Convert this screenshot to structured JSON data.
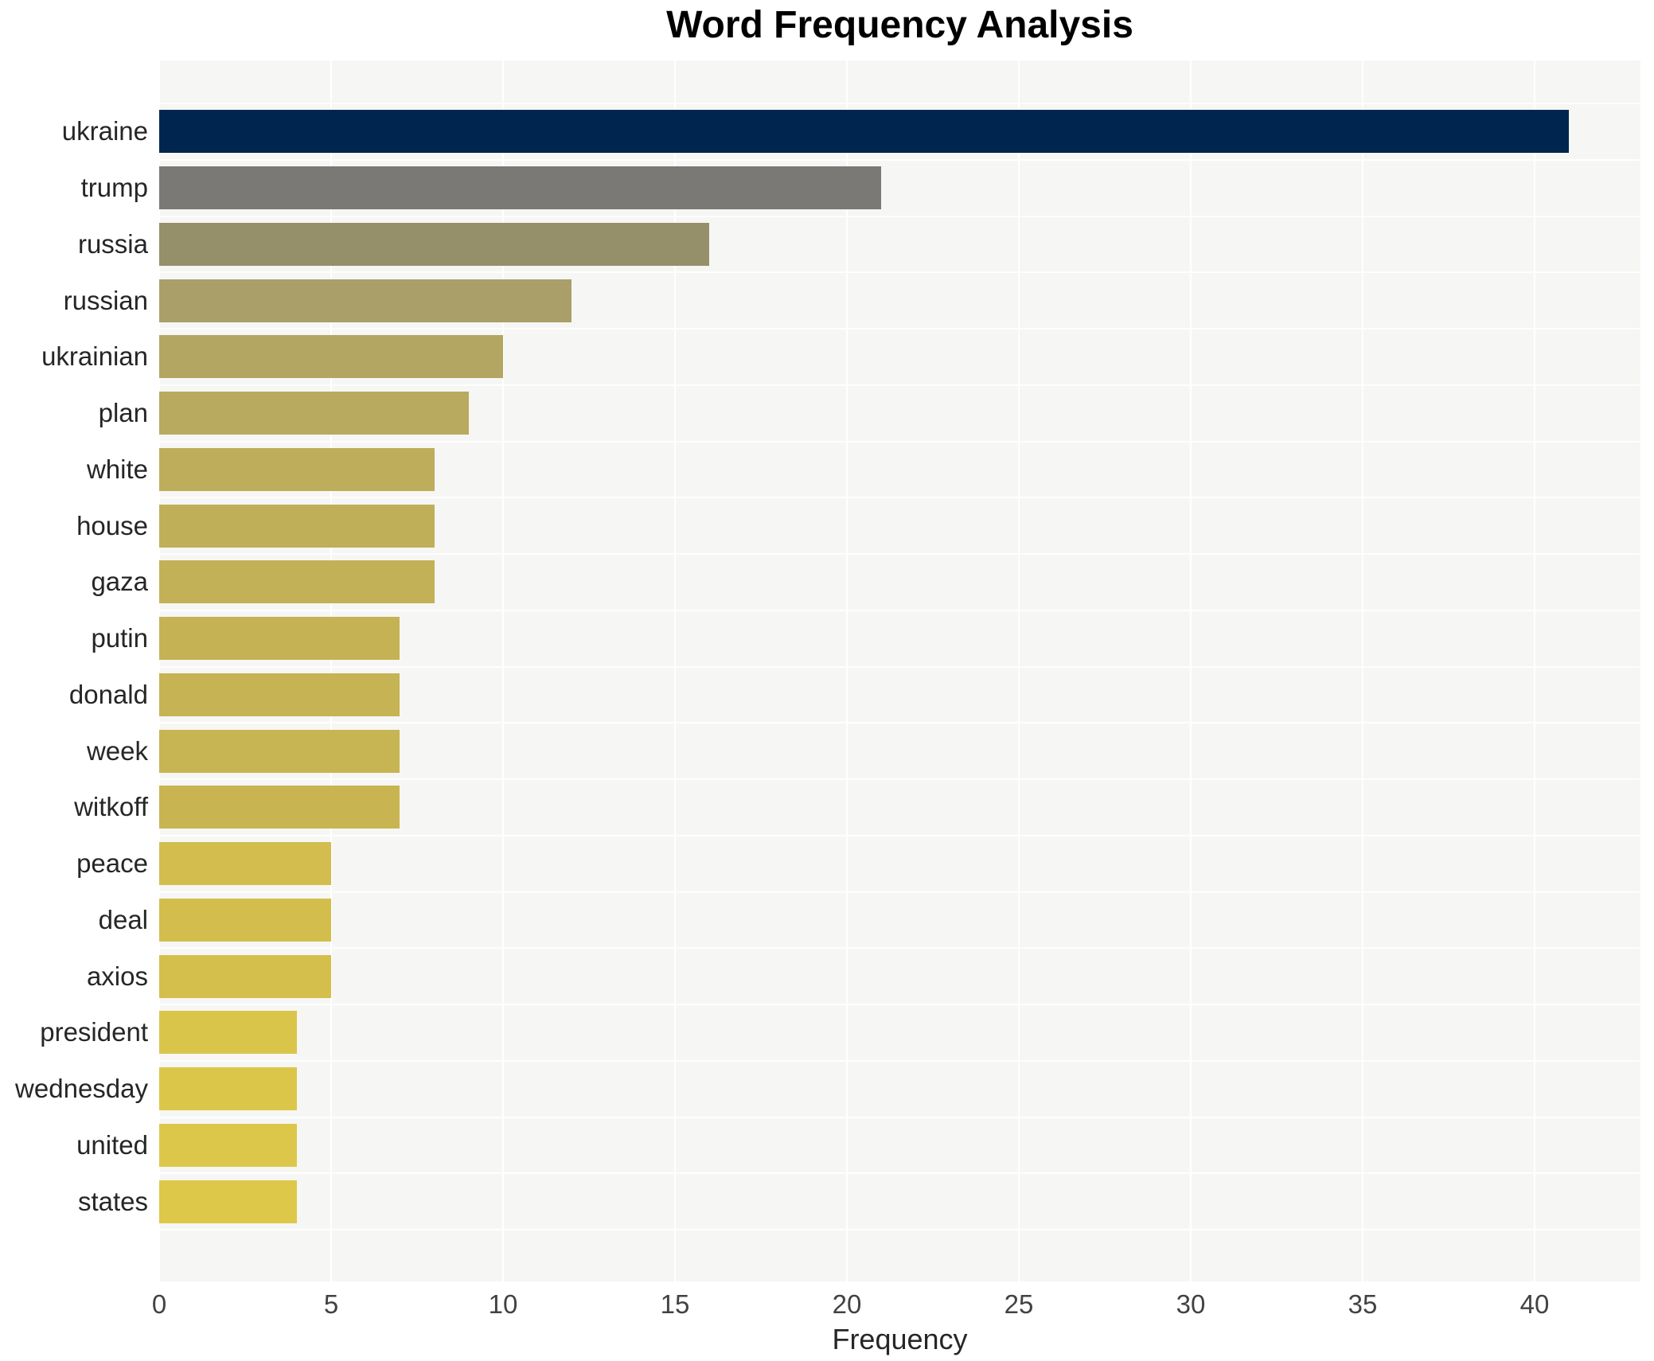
{
  "title": "Word Frequency Analysis",
  "chart_data": {
    "type": "bar",
    "orientation": "horizontal",
    "title": "Word Frequency Analysis",
    "xlabel": "Frequency",
    "ylabel": "",
    "xlim": [
      0,
      43
    ],
    "xticks": [
      0,
      5,
      10,
      15,
      20,
      25,
      30,
      35,
      40
    ],
    "grid": true,
    "legend": "none",
    "plot_background": "#f6f6f4",
    "gridline_color": "#ffffff",
    "categories": [
      "ukraine",
      "trump",
      "russia",
      "russian",
      "ukrainian",
      "plan",
      "white",
      "house",
      "gaza",
      "putin",
      "donald",
      "week",
      "witkoff",
      "peace",
      "deal",
      "axios",
      "president",
      "wednesday",
      "united",
      "states"
    ],
    "values": [
      41,
      21,
      16,
      12,
      10,
      9,
      8,
      8,
      8,
      7,
      7,
      7,
      7,
      5,
      5,
      5,
      4,
      4,
      4,
      4
    ],
    "bar_colors": [
      "#00254e",
      "#7a7976",
      "#96906a",
      "#aa9f68",
      "#b2a662",
      "#b8aa5e",
      "#bead5b",
      "#c0af59",
      "#c2b156",
      "#c5b254",
      "#c6b353",
      "#c7b452",
      "#c8b551",
      "#d2bd4e",
      "#d3be4d",
      "#d4bf4c",
      "#dac54b",
      "#dbc64a",
      "#dcc74a",
      "#ddc849"
    ]
  }
}
